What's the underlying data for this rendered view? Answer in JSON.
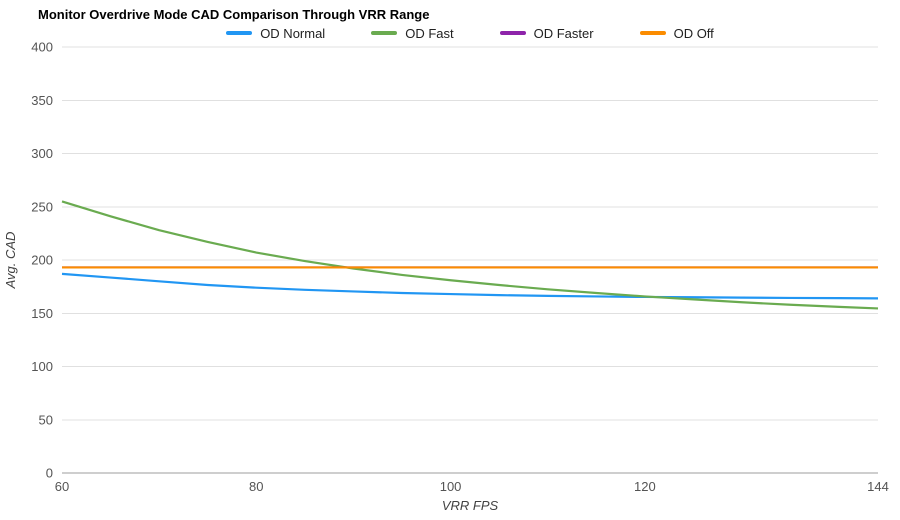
{
  "chart_data": {
    "type": "line",
    "title": "Monitor Overdrive Mode CAD Comparison Through VRR Range",
    "xlabel": "VRR FPS",
    "ylabel": "Avg. CAD",
    "xlim": [
      60,
      144
    ],
    "ylim": [
      0,
      400
    ],
    "x_ticks": [
      60,
      80,
      100,
      120,
      144
    ],
    "y_ticks": [
      0,
      50,
      100,
      150,
      200,
      250,
      300,
      350,
      400
    ],
    "grid": "horizontal",
    "legend_position": "top",
    "x": [
      60,
      65,
      70,
      75,
      80,
      85,
      90,
      95,
      100,
      105,
      110,
      115,
      120,
      125,
      130,
      135,
      140,
      144
    ],
    "series": [
      {
        "name": "OD Normal",
        "color": "#2196F3",
        "values": [
          187,
          183.5,
          180,
          176.5,
          174,
          172,
          170.5,
          169,
          168,
          167,
          166.3,
          165.8,
          165.3,
          165,
          164.7,
          164.4,
          164.2,
          164
        ]
      },
      {
        "name": "OD Fast",
        "color": "#6AAB50",
        "values": [
          255,
          241,
          228,
          217,
          207,
          199,
          192,
          186,
          181,
          176.5,
          172.5,
          169,
          165.8,
          163,
          160.3,
          158,
          156,
          154.5
        ]
      },
      {
        "name": "OD Faster",
        "color": "#8E24AA",
        "values": [
          193,
          193,
          193,
          193,
          193,
          193,
          193,
          193,
          193,
          193,
          193,
          193,
          193,
          193,
          193,
          193,
          193,
          193
        ]
      },
      {
        "name": "OD Off",
        "color": "#FB8C00",
        "values": [
          193,
          193,
          193,
          193,
          193,
          193,
          193,
          193,
          193,
          193,
          193,
          193,
          193,
          193,
          193,
          193,
          193,
          193
        ]
      }
    ],
    "colors": {
      "gridline": "#e0e0e0",
      "baseline": "#9e9e9e",
      "tick_label": "#545454",
      "axis_title": "#424242"
    }
  }
}
